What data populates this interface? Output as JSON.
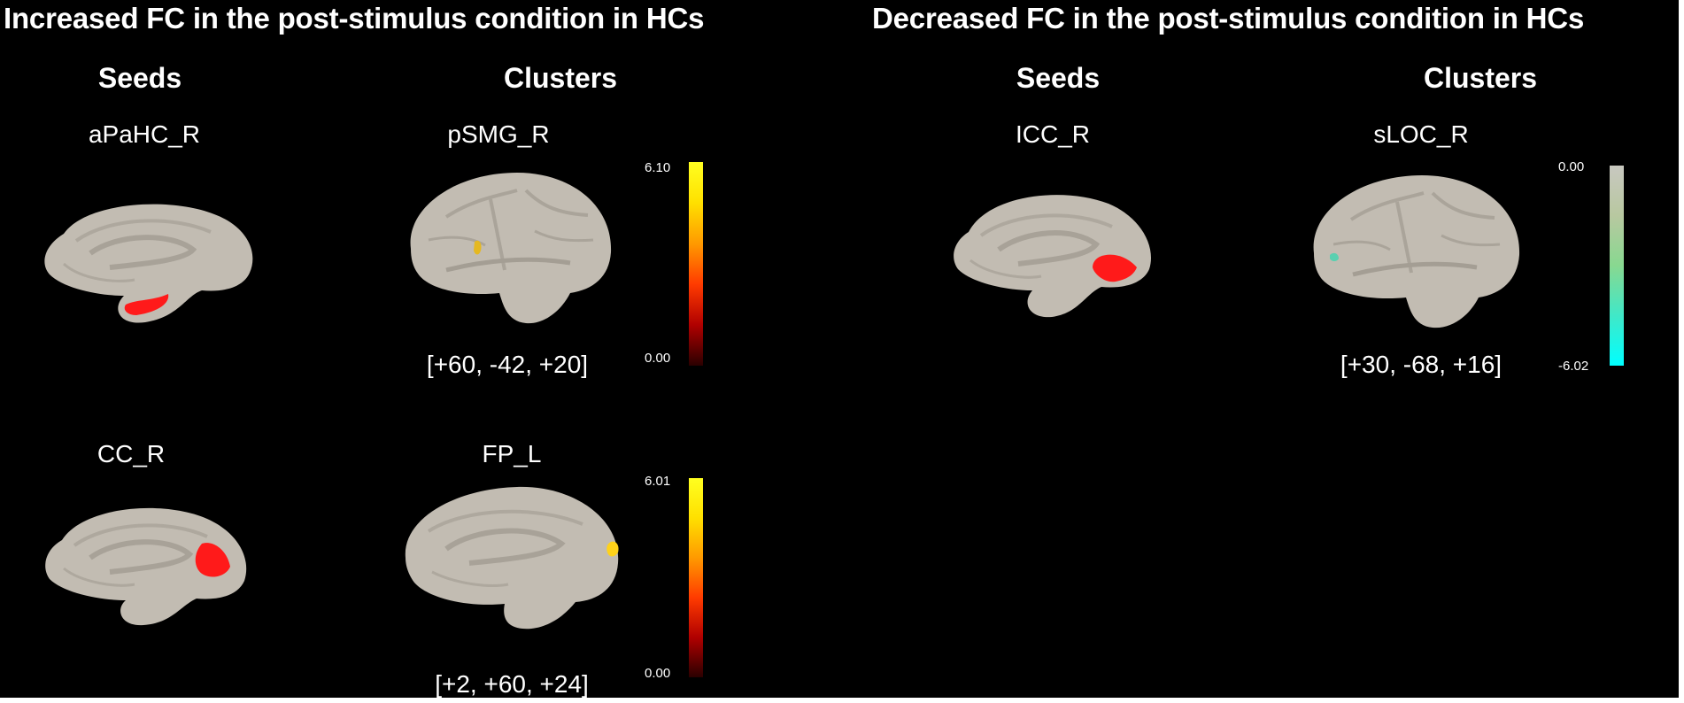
{
  "titles": {
    "increased": "Increased FC in the post-stimulus condition in HCs",
    "decreased": "Decreased FC in the post-stimulus condition in HCs"
  },
  "headers": {
    "seeds": "Seeds",
    "clusters": "Clusters"
  },
  "rows": [
    {
      "seed": "aPaHC_R",
      "cluster": "pSMG_R",
      "coord": "[+60, -42, +20]",
      "cb_max": "6.10",
      "cb_min": "0.00"
    },
    {
      "seed": "CC_R",
      "cluster": "FP_L",
      "coord": "[+2, +60, +24]",
      "cb_max": "6.01",
      "cb_min": "0.00"
    },
    {
      "seed": "ICC_R",
      "cluster": "sLOC_R",
      "coord": "[+30, -68, +16]",
      "cb_max": "0.00",
      "cb_min": "-6.02"
    }
  ],
  "colors": {
    "background": "#000000",
    "brain": "#c2bcb2",
    "seed_region": "#ff1a1a",
    "positive_colorbar": [
      "#2a0000",
      "#b00000",
      "#ff3b00",
      "#ff9a00",
      "#ffe000",
      "#ffff20"
    ],
    "negative_colorbar": [
      "#00ffff",
      "#40e8c8",
      "#88d890",
      "#b8c8a0",
      "#c8c8c0"
    ]
  }
}
